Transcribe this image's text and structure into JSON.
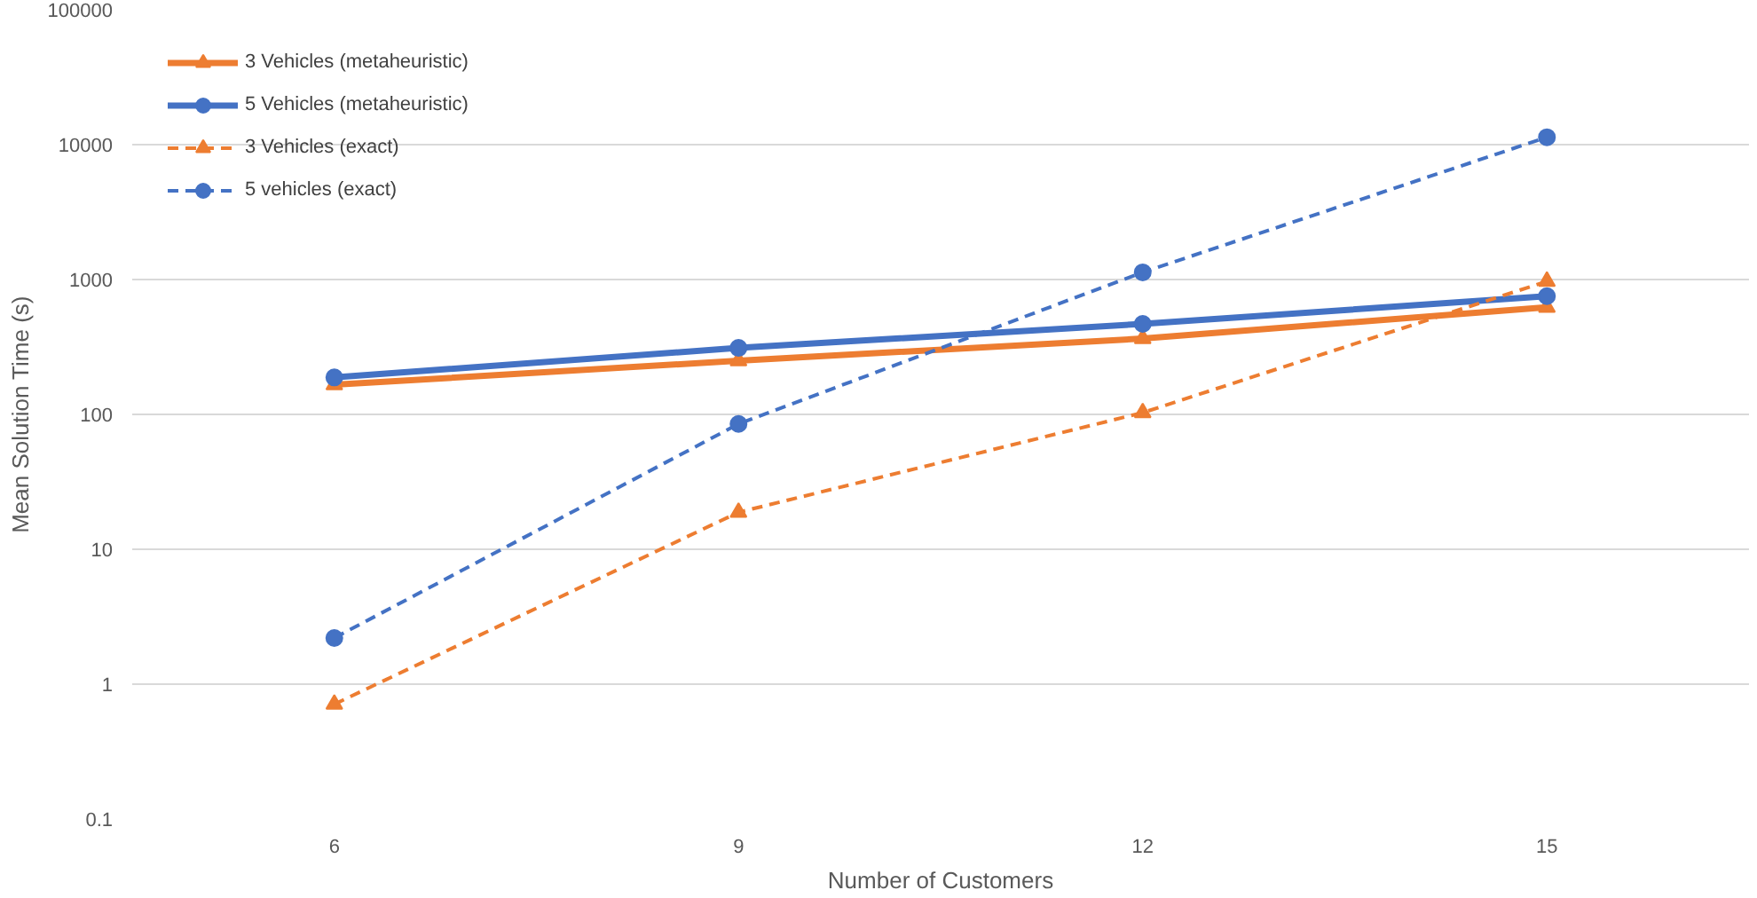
{
  "chart_data": {
    "type": "line",
    "xlabel": "Number of Customers",
    "ylabel": "Mean Solution Time (s)",
    "categories": [
      "6",
      "9",
      "12",
      "15"
    ],
    "log": "y",
    "ylim": [
      0.1,
      100000
    ],
    "yticks": [
      0.1,
      1,
      10,
      100,
      1000,
      10000,
      100000
    ],
    "grid": "y",
    "legend": "top left",
    "series": [
      {
        "name": "3 Vehicles (metaheuristic)",
        "color": "#ed7d31",
        "marker": "triangle",
        "line_style": "solid",
        "values": [
          166,
          250,
          365,
          623
        ]
      },
      {
        "name": "5 Vehicles (metaheuristic)",
        "color": "#4472c4",
        "marker": "circle",
        "line_style": "solid",
        "values": [
          188,
          311,
          469,
          753
        ]
      },
      {
        "name": "3 Vehicles (exact)",
        "color": "#ed7d31",
        "marker": "triangle",
        "line_style": "dashed",
        "values": [
          0.71,
          18.8,
          103,
          970
        ]
      },
      {
        "name": "5 vehicles (exact)",
        "color": "#4472c4",
        "marker": "circle",
        "line_style": "dashed",
        "values": [
          2.2,
          85,
          1130,
          11350
        ]
      }
    ]
  }
}
